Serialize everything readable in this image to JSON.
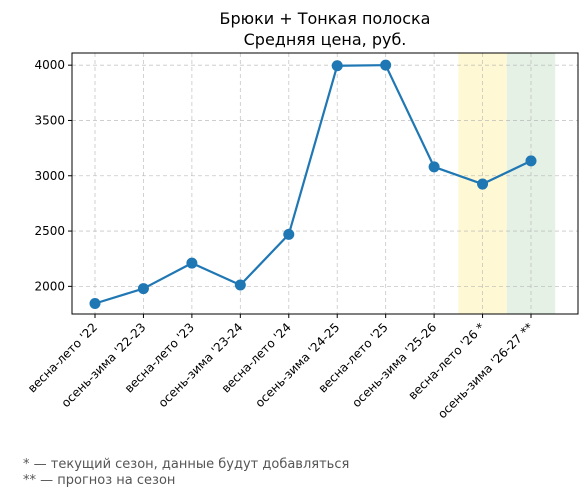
{
  "chart_data": {
    "type": "line",
    "title_line1": "Брюки + Тонкая полоска",
    "title_line2": "Средняя цена, руб.",
    "xlabel": "",
    "ylabel": "",
    "categories": [
      "весна-лето '22",
      "осень-зима '22-23",
      "весна-лето '23",
      "осень-зима '23-24",
      "весна-лето '24",
      "осень-зима '24-25",
      "весна-лето '25",
      "осень-зима '25-26",
      "весна-лето '26 *",
      "осень-зима '26-27 **"
    ],
    "series": [
      {
        "values": [
          1845,
          1980,
          2210,
          2012,
          2470,
          3995,
          4000,
          3080,
          2925,
          3135
        ],
        "color": "#1f77b4"
      }
    ],
    "yticks": [
      2000,
      2500,
      3000,
      3500,
      4000
    ],
    "ylim": [
      1750,
      4110
    ],
    "grid": true,
    "highlights": [
      {
        "category": "весна-лето '26 *",
        "color": "#fff3b0",
        "meaning": "current season"
      },
      {
        "category": "осень-зима '26-27 **",
        "color": "#cfe6cf",
        "meaning": "forecast"
      }
    ]
  },
  "footnotes": {
    "current": "* — текущий сезон, данные будут добавляться",
    "forecast": "** — прогноз на сезон"
  }
}
